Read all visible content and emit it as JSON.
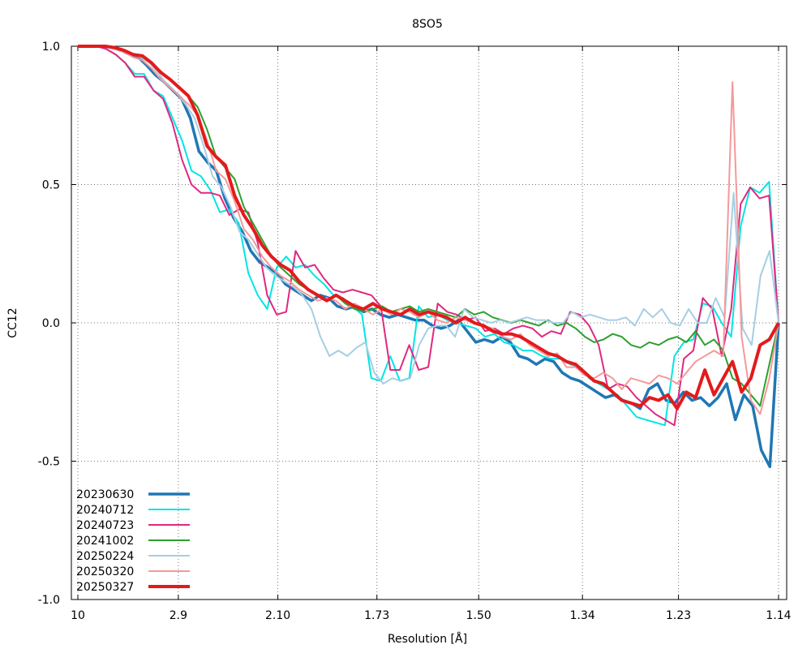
{
  "chart_data": {
    "type": "line",
    "title": "8SO5",
    "xlabel": "Resolution [Å]",
    "ylabel": "CC12",
    "xscale": "inverse-square (1/d²)",
    "x_tick_labels": [
      "10",
      "2.9",
      "2.10",
      "1.73",
      "1.50",
      "1.34",
      "1.23",
      "1.14"
    ],
    "x_tick_values": [
      10,
      2.9,
      2.1,
      1.73,
      1.5,
      1.34,
      1.23,
      1.14
    ],
    "xlim": [
      10,
      1.14
    ],
    "y_tick_labels": [
      "1.0",
      "0.5",
      "0.0",
      "-0.5",
      "-1.0"
    ],
    "y_tick_values": [
      1.0,
      0.5,
      0.0,
      -0.5,
      -1.0
    ],
    "ylim": [
      -1.0,
      1.0
    ],
    "grid": true,
    "legend_position": "bottom-left",
    "series": [
      {
        "name": "20230630",
        "color": "#1f77b4",
        "width": 3.5,
        "y": [
          1,
          1,
          1,
          1,
          0.995,
          0.985,
          0.97,
          0.96,
          0.93,
          0.895,
          0.87,
          0.84,
          0.81,
          0.74,
          0.62,
          0.58,
          0.55,
          0.45,
          0.38,
          0.33,
          0.26,
          0.22,
          0.2,
          0.18,
          0.14,
          0.12,
          0.1,
          0.08,
          0.1,
          0.09,
          0.06,
          0.05,
          0.06,
          0.04,
          0.05,
          0.03,
          0.02,
          0.03,
          0.02,
          0.01,
          0.01,
          -0.01,
          -0.02,
          -0.01,
          0.01,
          -0.03,
          -0.07,
          -0.06,
          -0.07,
          -0.05,
          -0.07,
          -0.12,
          -0.13,
          -0.15,
          -0.13,
          -0.14,
          -0.18,
          -0.2,
          -0.21,
          -0.23,
          -0.25,
          -0.27,
          -0.26,
          -0.28,
          -0.29,
          -0.31,
          -0.24,
          -0.22,
          -0.28,
          -0.29,
          -0.25,
          -0.28,
          -0.27,
          -0.3,
          -0.27,
          -0.22,
          -0.35,
          -0.26,
          -0.3,
          -0.46,
          -0.52,
          0
        ]
      },
      {
        "name": "20240712",
        "color": "#00e5e5",
        "width": 2,
        "y": [
          1,
          1,
          1,
          0.99,
          0.97,
          0.94,
          0.9,
          0.9,
          0.84,
          0.82,
          0.74,
          0.66,
          0.55,
          0.53,
          0.48,
          0.4,
          0.41,
          0.36,
          0.18,
          0.1,
          0.05,
          0.2,
          0.24,
          0.2,
          0.21,
          0.17,
          0.14,
          0.1,
          0.09,
          0.06,
          0.03,
          -0.2,
          -0.21,
          -0.12,
          -0.21,
          -0.2,
          0.06,
          0.02,
          0.03,
          0.01,
          0,
          -0.01,
          -0.02,
          -0.05,
          -0.04,
          -0.07,
          -0.08,
          -0.1,
          -0.1,
          -0.12,
          -0.13,
          -0.13,
          -0.15,
          -0.16,
          -0.2,
          -0.22,
          -0.24,
          -0.26,
          -0.3,
          -0.34,
          -0.35,
          -0.36,
          -0.37,
          -0.12,
          -0.07,
          -0.06,
          0.07,
          0.06,
          0.0,
          -0.05,
          0.35,
          0.49,
          0.47,
          0.51,
          0
        ]
      },
      {
        "name": "20240723",
        "color": "#e0287f",
        "width": 2,
        "y": [
          1,
          1,
          1,
          0.99,
          0.97,
          0.94,
          0.89,
          0.89,
          0.84,
          0.81,
          0.72,
          0.59,
          0.5,
          0.47,
          0.47,
          0.46,
          0.39,
          0.41,
          0.4,
          0.29,
          0.1,
          0.03,
          0.04,
          0.26,
          0.2,
          0.21,
          0.16,
          0.12,
          0.11,
          0.12,
          0.11,
          0.1,
          0.06,
          -0.17,
          -0.17,
          -0.08,
          -0.17,
          -0.16,
          0.07,
          0.04,
          0.03,
          0.01,
          0.02,
          -0.03,
          -0.02,
          -0.04,
          -0.02,
          -0.01,
          -0.02,
          -0.05,
          -0.03,
          -0.04,
          0.04,
          0.03,
          -0.01,
          -0.08,
          -0.24,
          -0.22,
          -0.23,
          -0.27,
          -0.3,
          -0.33,
          -0.35,
          -0.37,
          -0.13,
          -0.1,
          0.09,
          0.05,
          -0.12,
          0.05,
          0.43,
          0.49,
          0.45,
          0.46,
          0
        ]
      },
      {
        "name": "20241002",
        "color": "#2ca02c",
        "width": 2,
        "y": [
          1,
          1,
          1,
          1,
          0.99,
          0.98,
          0.97,
          0.96,
          0.94,
          0.91,
          0.88,
          0.85,
          0.82,
          0.78,
          0.7,
          0.6,
          0.56,
          0.52,
          0.42,
          0.36,
          0.3,
          0.24,
          0.2,
          0.17,
          0.14,
          0.12,
          0.1,
          0.08,
          0.1,
          0.07,
          0.05,
          0.04,
          0.05,
          0.06,
          0.04,
          0.05,
          0.06,
          0.04,
          0.05,
          0.04,
          0.03,
          0.02,
          0.05,
          0.03,
          0.04,
          0.02,
          0.01,
          0.0,
          0.01,
          0.0,
          -0.01,
          0.01,
          -0.01,
          0.0,
          -0.02,
          -0.05,
          -0.07,
          -0.06,
          -0.04,
          -0.05,
          -0.08,
          -0.09,
          -0.07,
          -0.08,
          -0.06,
          -0.05,
          -0.07,
          -0.03,
          -0.08,
          -0.06,
          -0.1,
          -0.2,
          -0.22,
          -0.26,
          -0.3,
          -0.15,
          0
        ]
      },
      {
        "name": "20250224",
        "color": "#a6cee3",
        "width": 2,
        "y": [
          1,
          1,
          1,
          1,
          0.99,
          0.98,
          0.97,
          0.96,
          0.94,
          0.9,
          0.86,
          0.83,
          0.79,
          0.74,
          0.64,
          0.53,
          0.49,
          0.42,
          0.33,
          0.3,
          0.25,
          0.2,
          0.17,
          0.15,
          0.13,
          0.1,
          0.05,
          -0.05,
          -0.12,
          -0.1,
          -0.12,
          -0.09,
          -0.07,
          -0.18,
          -0.22,
          -0.2,
          -0.21,
          -0.2,
          -0.08,
          -0.02,
          -0.01,
          -0.01,
          -0.05,
          0.05,
          0.02,
          0.01,
          0.0,
          0.01,
          0.0,
          0.01,
          0.02,
          0.01,
          0.01,
          0.0,
          0.0,
          0.04,
          0.02,
          0.03,
          0.02,
          0.01,
          0.01,
          0.02,
          -0.01,
          0.05,
          0.02,
          0.05,
          0.0,
          -0.01,
          0.05,
          0.0,
          0.0,
          0.09,
          0.02,
          0.47,
          -0.02,
          -0.08,
          0.17,
          0.26,
          0
        ]
      },
      {
        "name": "20250320",
        "color": "#f4999a",
        "width": 2,
        "y": [
          1,
          1,
          1,
          1,
          0.99,
          0.98,
          0.96,
          0.95,
          0.92,
          0.88,
          0.85,
          0.82,
          0.79,
          0.75,
          0.66,
          0.55,
          0.52,
          0.44,
          0.34,
          0.3,
          0.24,
          0.2,
          0.17,
          0.15,
          0.12,
          0.1,
          0.08,
          0.09,
          0.08,
          0.05,
          0.07,
          0.05,
          0.03,
          0.05,
          0.03,
          0.05,
          0.04,
          0.02,
          0.04,
          0.01,
          0.0,
          0.02,
          0.01,
          0.0,
          -0.01,
          -0.02,
          -0.05,
          -0.06,
          -0.04,
          -0.08,
          -0.1,
          -0.12,
          -0.11,
          -0.16,
          -0.16,
          -0.19,
          -0.2,
          -0.18,
          -0.2,
          -0.24,
          -0.2,
          -0.21,
          -0.22,
          -0.19,
          -0.2,
          -0.22,
          -0.18,
          -0.14,
          -0.12,
          -0.1,
          -0.12,
          0.87,
          -0.05,
          -0.28,
          -0.33,
          -0.2,
          0
        ]
      },
      {
        "name": "20250327",
        "color": "#e31a1c",
        "width": 4,
        "y": [
          1,
          1,
          1,
          1,
          0.995,
          0.985,
          0.97,
          0.965,
          0.94,
          0.905,
          0.88,
          0.85,
          0.82,
          0.75,
          0.64,
          0.6,
          0.57,
          0.46,
          0.39,
          0.34,
          0.28,
          0.24,
          0.21,
          0.19,
          0.15,
          0.12,
          0.1,
          0.08,
          0.1,
          0.08,
          0.06,
          0.05,
          0.07,
          0.05,
          0.04,
          0.03,
          0.05,
          0.03,
          0.04,
          0.03,
          0.02,
          0.0,
          0.02,
          0.0,
          -0.01,
          -0.03,
          -0.04,
          -0.04,
          -0.05,
          -0.07,
          -0.09,
          -0.11,
          -0.12,
          -0.14,
          -0.15,
          -0.18,
          -0.21,
          -0.22,
          -0.25,
          -0.28,
          -0.29,
          -0.3,
          -0.27,
          -0.28,
          -0.26,
          -0.31,
          -0.25,
          -0.27,
          -0.17,
          -0.26,
          -0.2,
          -0.14,
          -0.25,
          -0.2,
          -0.08,
          -0.06,
          0
        ]
      }
    ]
  }
}
